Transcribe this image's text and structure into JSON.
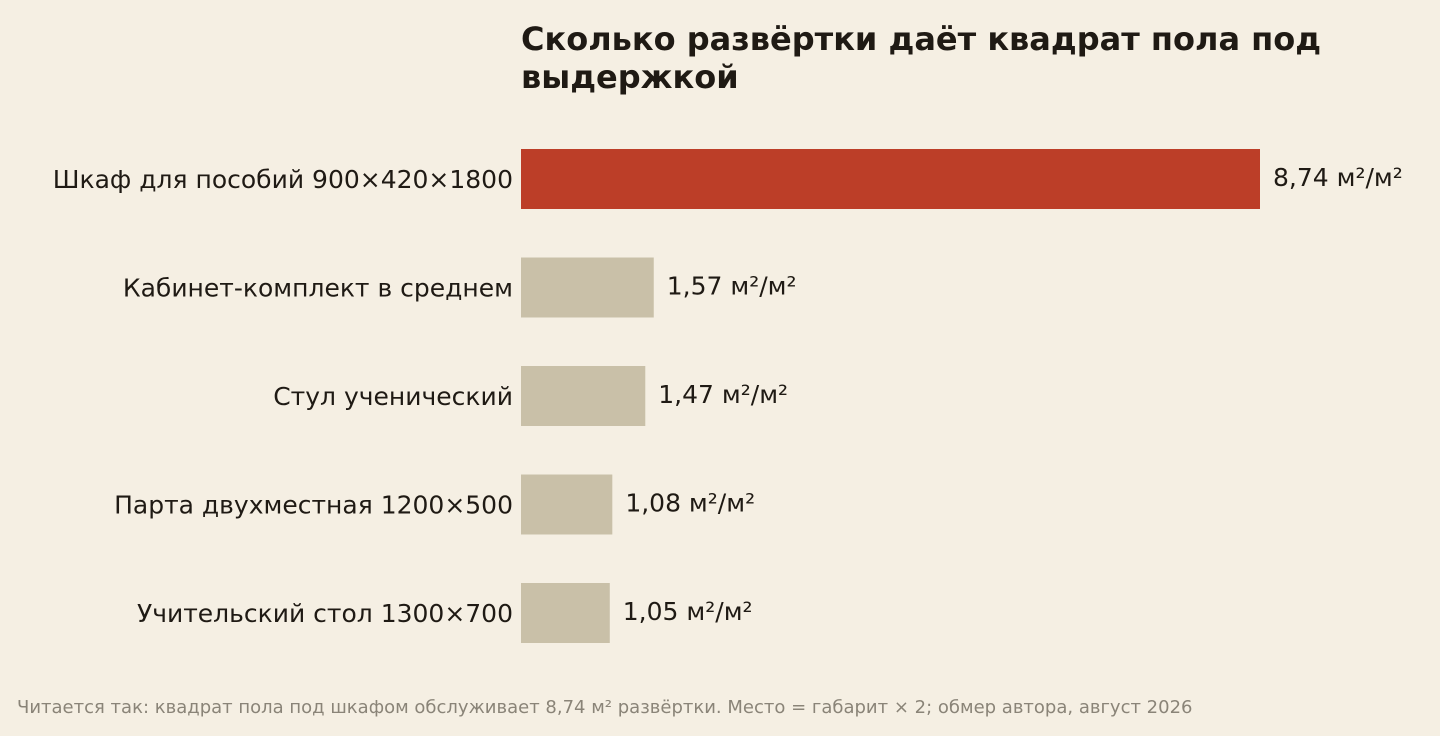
{
  "chart_data": {
    "type": "bar",
    "orientation": "horizontal",
    "title": "Сколько развёртки даёт квадрат пола под выдержкой",
    "categories": [
      "Шкаф для пособий 900×420×1800",
      "Кабинет-комплект в среднем",
      "Стул ученический",
      "Парта двухместная 1200×500",
      "Учительский стол 1300×700"
    ],
    "values": [
      8.74,
      1.57,
      1.47,
      1.08,
      1.05
    ],
    "value_labels": [
      "8,74 м²/м²",
      "1,57 м²/м²",
      "1,47 м²/м²",
      "1,08 м²/м²",
      "1,05 м²/м²"
    ],
    "highlight_index": 0,
    "colors": {
      "highlight": "#bc3e28",
      "default": "#c9c0a8",
      "background": "#f5efe3",
      "text": "#1f1a14",
      "footnote": "#8a8478"
    },
    "xlabel": "",
    "ylabel": "",
    "grid": false,
    "legend": "none"
  },
  "footnote": "Читается так: квадрат пола под шкафом обслуживает 8,74 м² развёртки. Место = габарит × 2; обмер автора, август 2026"
}
